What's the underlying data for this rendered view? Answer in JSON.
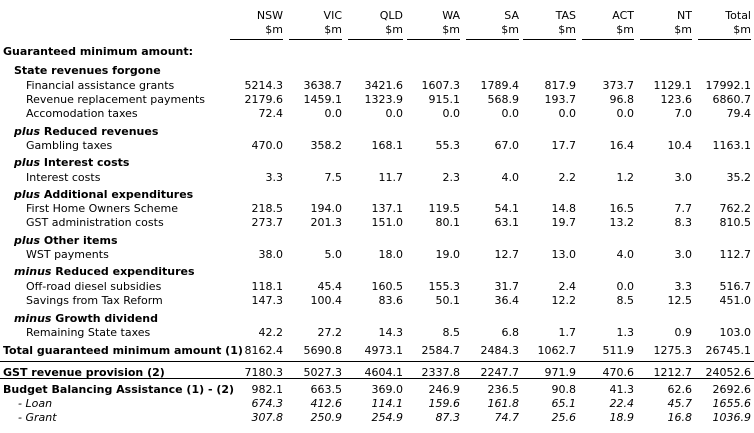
{
  "columns": [
    "NSW",
    "VIC",
    "QLD",
    "WA",
    "SA",
    "TAS",
    "ACT",
    "NT",
    "Total"
  ],
  "unit": "$m",
  "rows": [
    {
      "label": "Guaranteed minimum amount:",
      "style": "l0"
    },
    {
      "label": "State revenues forgone",
      "style": "l1"
    },
    {
      "label": "Financial assistance grants",
      "style": "l2",
      "values": [
        "5214.3",
        "3638.7",
        "3421.6",
        "1607.3",
        "1789.4",
        "817.9",
        "373.7",
        "1129.1",
        "17992.1"
      ]
    },
    {
      "label": "Revenue replacement payments",
      "style": "l2",
      "values": [
        "2179.6",
        "1459.1",
        "1323.9",
        "915.1",
        "568.9",
        "193.7",
        "96.8",
        "123.6",
        "6860.7"
      ]
    },
    {
      "label": "Accomodation taxes",
      "style": "l2",
      "values": [
        "72.4",
        "0.0",
        "0.0",
        "0.0",
        "0.0",
        "0.0",
        "0.0",
        "7.0",
        "79.4"
      ]
    },
    {
      "prefix": "plus",
      "label": "Reduced revenues",
      "style": "l1"
    },
    {
      "label": "Gambling taxes",
      "style": "l2",
      "values": [
        "470.0",
        "358.2",
        "168.1",
        "55.3",
        "67.0",
        "17.7",
        "16.4",
        "10.4",
        "1163.1"
      ]
    },
    {
      "prefix": "plus",
      "label": "Interest costs",
      "style": "l1"
    },
    {
      "label": "Interest costs",
      "style": "l2",
      "values": [
        "3.3",
        "7.5",
        "11.7",
        "2.3",
        "4.0",
        "2.2",
        "1.2",
        "3.0",
        "35.2"
      ]
    },
    {
      "prefix": "plus",
      "label": "Additional expenditures",
      "style": "l1"
    },
    {
      "label": "First Home Owners Scheme",
      "style": "l2",
      "values": [
        "218.5",
        "194.0",
        "137.1",
        "119.5",
        "54.1",
        "14.8",
        "16.5",
        "7.7",
        "762.2"
      ]
    },
    {
      "label": "GST administration costs",
      "style": "l2",
      "values": [
        "273.7",
        "201.3",
        "151.0",
        "80.1",
        "63.1",
        "19.7",
        "13.2",
        "8.3",
        "810.5"
      ]
    },
    {
      "prefix": "plus",
      "label": "Other items",
      "style": "l1"
    },
    {
      "label": "WST payments",
      "style": "l2",
      "values": [
        "38.0",
        "5.0",
        "18.0",
        "19.0",
        "12.7",
        "13.0",
        "4.0",
        "3.0",
        "112.7"
      ]
    },
    {
      "prefix": "minus",
      "label": "Reduced expenditures",
      "style": "l1"
    },
    {
      "label": "Off-road diesel subsidies",
      "style": "l2",
      "values": [
        "118.1",
        "45.4",
        "160.5",
        "155.3",
        "31.7",
        "2.4",
        "0.0",
        "3.3",
        "516.7"
      ]
    },
    {
      "label": "Savings from Tax Reform",
      "style": "l2",
      "values": [
        "147.3",
        "100.4",
        "83.6",
        "50.1",
        "36.4",
        "12.2",
        "8.5",
        "12.5",
        "451.0"
      ]
    },
    {
      "prefix": "minus",
      "label": "Growth dividend",
      "style": "l1"
    },
    {
      "label": "Remaining State taxes",
      "style": "l2",
      "values": [
        "42.2",
        "27.2",
        "14.3",
        "8.5",
        "6.8",
        "1.7",
        "1.3",
        "0.9",
        "103.0"
      ]
    },
    {
      "label": "Total guaranteed minimum amount (1)",
      "style": "l0",
      "values": [
        "8162.4",
        "5690.8",
        "4973.1",
        "2584.7",
        "2484.3",
        "1062.7",
        "511.9",
        "1275.3",
        "26745.1"
      ]
    },
    {
      "label": "GST revenue provision (2)",
      "style": "l0",
      "values": [
        "7180.3",
        "5027.3",
        "4604.1",
        "2337.8",
        "2247.7",
        "971.9",
        "470.6",
        "1212.7",
        "24052.6"
      ]
    },
    {
      "label": "Budget Balancing Assistance (1) - (2)",
      "style": "l0",
      "values": [
        "982.1",
        "663.5",
        "369.0",
        "246.9",
        "236.5",
        "90.8",
        "41.3",
        "62.6",
        "2692.6"
      ]
    },
    {
      "label": "- Loan",
      "style": "l3",
      "values": [
        "674.3",
        "412.6",
        "114.1",
        "159.6",
        "161.8",
        "65.1",
        "22.4",
        "45.7",
        "1655.6"
      ]
    },
    {
      "label": "- Grant",
      "style": "l3",
      "values": [
        "307.8",
        "250.9",
        "254.9",
        "87.3",
        "74.7",
        "25.6",
        "18.9",
        "16.8",
        "1036.9"
      ]
    }
  ]
}
